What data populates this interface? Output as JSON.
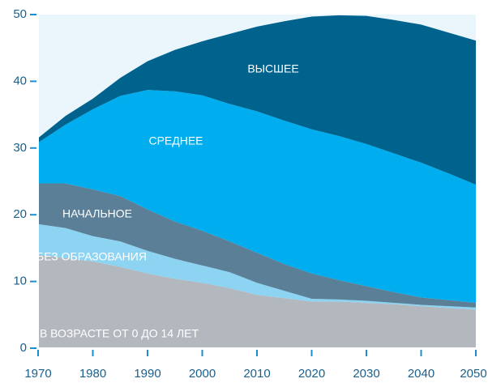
{
  "chart_data": {
    "type": "stacked_area",
    "x": [
      1970,
      1975,
      1980,
      1985,
      1990,
      1995,
      2000,
      2005,
      2010,
      2015,
      2020,
      2025,
      2030,
      2035,
      2040,
      2045,
      2050
    ],
    "series": [
      {
        "name": "В ВОЗРАСТЕ ОТ 0 ДО 14 ЛЕТ",
        "color": "#b3b8bf",
        "values": [
          14,
          13.5,
          13,
          12.2,
          11.2,
          10.4,
          9.8,
          9.0,
          8.0,
          7.5,
          7.0,
          7.0,
          6.8,
          6.6,
          6.3,
          6.0,
          5.8
        ]
      },
      {
        "name": "БЕЗ ОБРАЗОВАНИЯ",
        "color": "#8dd4f3",
        "values": [
          4.6,
          4.5,
          3.8,
          3.8,
          3.4,
          3.0,
          2.6,
          2.4,
          1.8,
          1.1,
          0.4,
          0.3,
          0.3,
          0.2,
          0.2,
          0.3,
          0.3
        ]
      },
      {
        "name": "НАЧАЛЬНОЕ",
        "color": "#5b7f97",
        "values": [
          6.1,
          6.7,
          7.0,
          6.8,
          6.2,
          5.6,
          5.2,
          4.6,
          4.5,
          4.0,
          3.8,
          2.9,
          2.2,
          1.6,
          1.1,
          0.9,
          0.7
        ]
      },
      {
        "name": "СРЕДНЕЕ",
        "color": "#00aeef",
        "values": [
          6.1,
          8.8,
          12.0,
          15.0,
          17.9,
          19.5,
          20.3,
          20.6,
          21.2,
          21.5,
          21.6,
          21.6,
          21.3,
          20.8,
          20.2,
          19.0,
          17.7
        ]
      },
      {
        "name": "ВЫСШЕЕ",
        "color": "#00638e",
        "values": [
          0.7,
          1.3,
          1.6,
          2.7,
          4.3,
          6.2,
          8.1,
          10.5,
          12.7,
          14.9,
          16.9,
          18.1,
          19.2,
          20.0,
          20.7,
          21.1,
          21.6
        ]
      }
    ],
    "xlim": [
      1970,
      2050
    ],
    "xticks": [
      1970,
      1980,
      1990,
      2000,
      2010,
      2020,
      2030,
      2040,
      2050
    ],
    "ylim": [
      0,
      50
    ],
    "yticks": [
      0,
      10,
      20,
      30,
      40,
      50
    ]
  }
}
